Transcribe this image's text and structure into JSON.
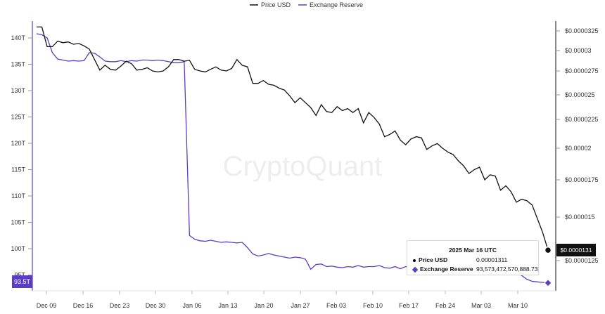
{
  "watermark": "CryptoQuant",
  "colors": {
    "price": "#111111",
    "reserve": "#5b3cc4"
  },
  "left_value_badge": "93.5T",
  "right_value_badge": "$0.0000131",
  "tooltip": {
    "title": "2025 Mar 16 UTC",
    "price_label": "Price USD",
    "price_value": "0.00001311",
    "reserve_label": "Exchange Reserve",
    "reserve_value": "93,573,472,570,888.73"
  },
  "chart_data": {
    "type": "line",
    "legend_position": "top-center",
    "grid": false,
    "x_labels": [
      "Dec 09",
      "Dec 16",
      "Dec 23",
      "Dec 30",
      "Jan 06",
      "Jan 13",
      "Jan 20",
      "Jan 27",
      "Feb 03",
      "Feb 10",
      "Feb 17",
      "Feb 24",
      "Mar 03",
      "Mar 10"
    ],
    "y_left": {
      "ticks": [
        "140T",
        "135T",
        "130T",
        "125T",
        "120T",
        "115T",
        "110T",
        "105T",
        "100T",
        "95T"
      ],
      "range": [
        93.5,
        141
      ]
    },
    "y_right": {
      "ticks": [
        "$0.0000325",
        "$0.00003",
        "$0.0000275",
        "$0.000025",
        "$0.0000225",
        "$0.00002",
        "$0.0000175",
        "$0.000015",
        "$0.0000125"
      ],
      "range": [
        1.31e-05,
        3.306e-05
      ]
    },
    "series": [
      {
        "name": "Price USD",
        "axis": "right",
        "x": [
          0,
          1,
          2,
          3,
          4,
          5,
          6,
          7,
          8,
          9,
          10,
          11,
          12,
          13,
          14,
          15,
          16,
          17,
          18,
          19,
          20,
          21,
          22,
          23,
          24,
          25,
          26,
          27,
          28,
          29,
          30,
          31,
          32,
          33,
          34,
          35,
          36,
          37,
          38,
          39,
          40,
          41,
          42,
          43,
          44,
          45,
          46,
          47,
          48,
          49,
          50,
          51,
          52,
          53,
          54,
          55,
          56,
          57,
          58,
          59,
          60,
          61,
          62,
          63,
          64,
          65,
          66,
          67,
          68,
          69,
          70,
          71,
          72,
          73,
          74,
          75,
          76,
          77,
          78,
          79,
          80,
          81,
          82,
          83,
          84,
          85,
          86,
          87,
          88,
          89,
          90,
          91,
          92,
          93,
          94,
          95,
          96,
          97
        ],
        "values": [
          3.3e-05,
          3.3e-05,
          3.05e-05,
          3.05e-05,
          3.12e-05,
          3.1e-05,
          3.11e-05,
          3.08e-05,
          3.09e-05,
          3.06e-05,
          3.02e-05,
          2.89e-05,
          2.76e-05,
          2.82e-05,
          2.77e-05,
          2.76e-05,
          2.81e-05,
          2.87e-05,
          2.84e-05,
          2.76e-05,
          2.77e-05,
          2.79e-05,
          2.75e-05,
          2.74e-05,
          2.75e-05,
          2.8e-05,
          2.89e-05,
          2.89e-05,
          2.87e-05,
          2.88e-05,
          2.77e-05,
          2.75e-05,
          2.74e-05,
          2.77e-05,
          2.8e-05,
          2.76e-05,
          2.75e-05,
          2.78e-05,
          2.89e-05,
          2.82e-05,
          2.8e-05,
          2.62e-05,
          2.62e-05,
          2.65e-05,
          2.61e-05,
          2.6e-05,
          2.57e-05,
          2.55e-05,
          2.49e-05,
          2.42e-05,
          2.47e-05,
          2.42e-05,
          2.37e-05,
          2.29e-05,
          2.4e-05,
          2.33e-05,
          2.32e-05,
          2.38e-05,
          2.34e-05,
          2.36e-05,
          2.32e-05,
          2.36e-05,
          2.22e-05,
          2.32e-05,
          2.27e-05,
          2.21e-05,
          2.1e-05,
          2.12e-05,
          2.15e-05,
          2.07e-05,
          2.03e-05,
          2.08e-05,
          2.1e-05,
          2.09e-05,
          1.99e-05,
          2.02e-05,
          2.04e-05,
          2e-05,
          1.97e-05,
          1.95e-05,
          1.9e-05,
          1.86e-05,
          1.8e-05,
          1.83e-05,
          1.85e-05,
          1.75e-05,
          1.79e-05,
          1.78e-05,
          1.68e-05,
          1.71e-05,
          1.67e-05,
          1.6e-05,
          1.62e-05,
          1.61e-05,
          1.58e-05,
          1.49e-05,
          1.41e-05,
          1.31e-05
        ]
      },
      {
        "name": "Exchange Reserve",
        "axis": "left",
        "x": [
          0,
          1,
          2,
          3,
          4,
          5,
          6,
          7,
          8,
          9,
          10,
          11,
          12,
          13,
          14,
          15,
          16,
          17,
          18,
          19,
          20,
          21,
          22,
          23,
          24,
          25,
          26,
          27,
          28,
          29,
          30,
          31,
          32,
          33,
          34,
          35,
          36,
          37,
          38,
          39,
          40,
          41,
          42,
          43,
          44,
          45,
          46,
          47,
          48,
          49,
          50,
          51,
          52,
          53,
          54,
          55,
          56,
          57,
          58,
          59,
          60,
          61,
          62,
          63,
          64,
          65,
          66,
          67,
          68,
          69,
          70,
          71,
          72,
          73,
          74,
          75,
          76,
          77,
          78,
          79,
          80,
          81,
          82,
          83,
          84,
          85,
          86,
          87,
          88,
          89,
          90,
          91,
          92,
          93,
          94,
          95,
          96,
          97
        ],
        "values": [
          140.8,
          140.6,
          140.0,
          137.2,
          136.0,
          135.8,
          135.6,
          135.7,
          135.6,
          135.7,
          137.2,
          137.1,
          136.4,
          135.6,
          135.5,
          135.5,
          135.7,
          135.5,
          135.7,
          135.6,
          135.8,
          135.8,
          135.7,
          135.8,
          135.7,
          135.5,
          135.3,
          135.3,
          135.5,
          102.5,
          101.8,
          101.5,
          101.4,
          101.6,
          101.4,
          101.2,
          101.3,
          101.2,
          101.1,
          101.2,
          100.2,
          99.0,
          98.6,
          98.8,
          99.1,
          98.8,
          98.6,
          98.4,
          98.2,
          98.4,
          98.3,
          98.0,
          96.1,
          97.0,
          97.1,
          96.6,
          96.7,
          96.5,
          96.4,
          96.6,
          96.5,
          96.8,
          96.5,
          96.6,
          96.6,
          96.8,
          96.4,
          96.3,
          96.6,
          96.2,
          96.6,
          96.4,
          96.6,
          96.5,
          96.2,
          96.4,
          96.3,
          96.5,
          96.1,
          96.2,
          96.0,
          96.2,
          96.1,
          95.9,
          95.9,
          96.0,
          95.8,
          95.8,
          95.6,
          95.8,
          95.6,
          95.4,
          94.9,
          94.2,
          93.8,
          93.7,
          93.6,
          93.5
        ]
      }
    ]
  }
}
